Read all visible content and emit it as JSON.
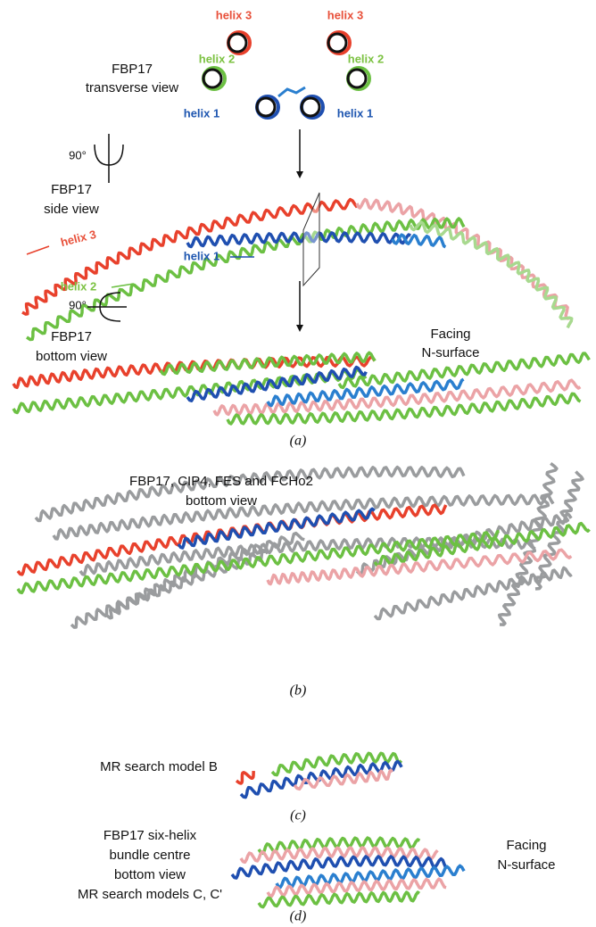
{
  "panel_a": {
    "label": "(a)",
    "transverse_title": [
      "FBP17",
      "transverse view"
    ],
    "transverse_helices": [
      "helix 3",
      "helix 3",
      "helix 2",
      "helix 2",
      "helix 1",
      "helix 1"
    ],
    "rotation_1": "90°",
    "side_title": [
      "FBP17",
      "side view"
    ],
    "side_helices": [
      "helix 3",
      "helix 2",
      "helix 1"
    ],
    "rotation_2": "90°",
    "bottom_title": [
      "FBP17",
      "bottom view"
    ],
    "facing": [
      "Facing",
      "N-surface"
    ]
  },
  "panel_b": {
    "label": "(b)",
    "title": [
      "FBP17, CIP4, FES and FCHo2",
      "bottom view"
    ]
  },
  "panel_c": {
    "label": "(c)",
    "title": "MR search model B"
  },
  "panel_d": {
    "label": "(d)",
    "title": [
      "FBP17 six-helix",
      "bundle centre",
      "bottom view",
      "MR search models C, C'"
    ],
    "facing": [
      "Facing",
      "N-surface"
    ]
  }
}
